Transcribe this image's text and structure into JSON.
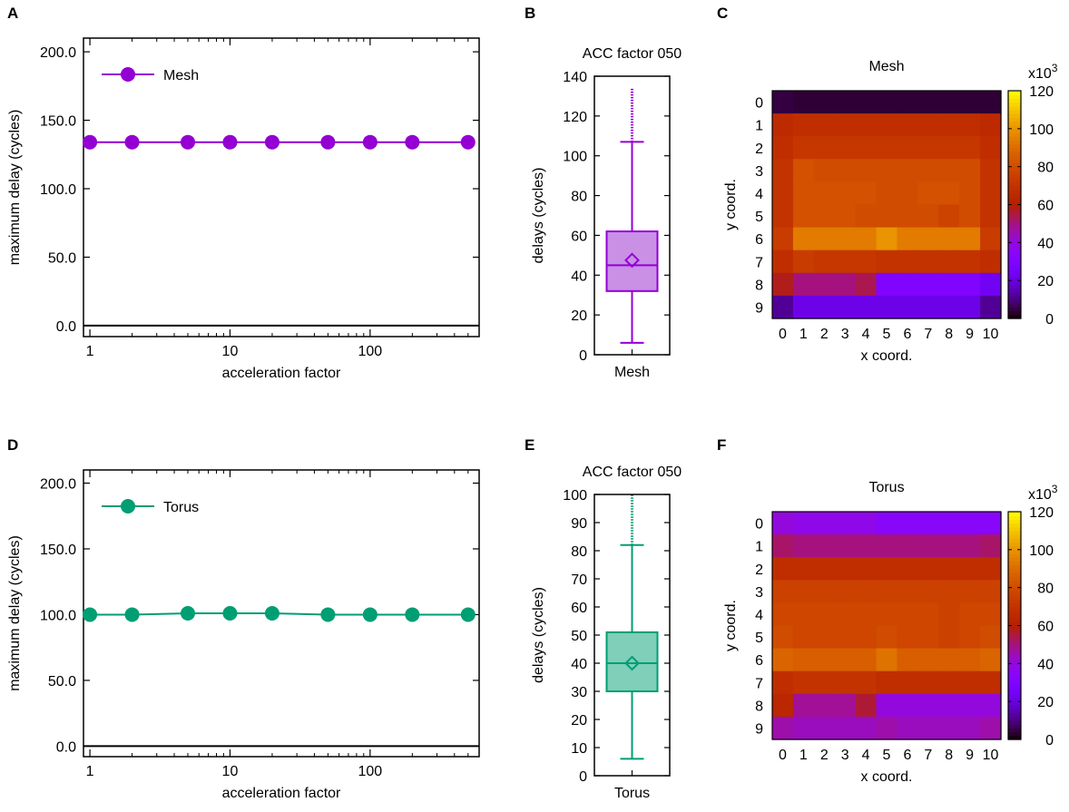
{
  "panel_labels": {
    "A": "A",
    "B": "B",
    "C": "C",
    "D": "D",
    "E": "E",
    "F": "F"
  },
  "chart_data": [
    {
      "id": "A",
      "type": "line",
      "title": "",
      "xlabel": "acceleration factor",
      "ylabel": "maximum delay (cycles)",
      "xscale": "log",
      "xlim": [
        0.9,
        600
      ],
      "ylim": [
        -8,
        210
      ],
      "xticks": [
        1,
        10,
        100
      ],
      "xtick_labels": [
        "1",
        "10",
        "100"
      ],
      "yticks": [
        0,
        50,
        100,
        150,
        200
      ],
      "ytick_labels": [
        "0.0",
        "50.0",
        "100.0",
        "150.0",
        "200.0"
      ],
      "legend_position": "top-left",
      "color": "#9400d3",
      "series": [
        {
          "name": "Mesh",
          "x": [
            1,
            2,
            5,
            10,
            20,
            50,
            100,
            200,
            500
          ],
          "y": [
            134,
            134,
            134,
            134,
            134,
            134,
            134,
            134,
            134
          ]
        }
      ]
    },
    {
      "id": "B",
      "type": "box",
      "title": "ACC factor 050",
      "xlabel": "Mesh",
      "ylabel": "delays (cycles)",
      "ylim": [
        0,
        140
      ],
      "yticks": [
        0,
        20,
        40,
        60,
        80,
        100,
        120,
        140
      ],
      "ytick_labels": [
        "0",
        "20",
        "40",
        "60",
        "80",
        "100",
        "120",
        "140"
      ],
      "color": "#9400d3",
      "fill": "#c990e6",
      "stats": {
        "whisker_low": 6,
        "q1": 32,
        "median": 45,
        "mean": 47.5,
        "q3": 62,
        "whisker_high": 107,
        "outlier_max": 134
      }
    },
    {
      "id": "C",
      "type": "heatmap",
      "title": "Mesh",
      "xlabel": "x coord.",
      "ylabel": "y coord.",
      "x_labels": [
        "0",
        "1",
        "2",
        "3",
        "4",
        "5",
        "6",
        "7",
        "8",
        "9",
        "10"
      ],
      "y_labels": [
        "0",
        "1",
        "2",
        "3",
        "4",
        "5",
        "6",
        "7",
        "8",
        "9"
      ],
      "colorbar_label": "x10",
      "colorbar_exponent": "3",
      "colorbar_ticks": [
        0,
        20,
        40,
        60,
        80,
        100,
        120
      ],
      "colorbar_tick_labels": [
        "0",
        "20",
        "40",
        "60",
        "80",
        "100",
        "120"
      ],
      "colorbar_range": [
        0,
        120
      ],
      "values": [
        [
          5,
          4,
          4,
          4,
          4,
          4,
          4,
          4,
          4,
          4,
          4
        ],
        [
          66,
          68,
          68,
          68,
          68,
          68,
          68,
          68,
          68,
          68,
          66
        ],
        [
          68,
          72,
          72,
          72,
          72,
          72,
          72,
          72,
          72,
          72,
          68
        ],
        [
          70,
          82,
          80,
          80,
          80,
          80,
          80,
          80,
          80,
          80,
          70
        ],
        [
          70,
          82,
          82,
          82,
          82,
          80,
          80,
          82,
          82,
          80,
          70
        ],
        [
          70,
          82,
          82,
          82,
          80,
          80,
          80,
          80,
          77,
          80,
          70
        ],
        [
          74,
          94,
          94,
          94,
          94,
          100,
          94,
          94,
          94,
          94,
          74
        ],
        [
          68,
          74,
          72,
          72,
          72,
          70,
          70,
          70,
          70,
          70,
          68
        ],
        [
          58,
          50,
          50,
          50,
          54,
          30,
          30,
          30,
          30,
          30,
          24
        ],
        [
          12,
          22,
          22,
          22,
          22,
          22,
          22,
          22,
          22,
          22,
          12
        ]
      ]
    },
    {
      "id": "D",
      "type": "line",
      "title": "",
      "xlabel": "acceleration factor",
      "ylabel": "maximum delay (cycles)",
      "xscale": "log",
      "xlim": [
        0.9,
        600
      ],
      "ylim": [
        -8,
        210
      ],
      "xticks": [
        1,
        10,
        100
      ],
      "xtick_labels": [
        "1",
        "10",
        "100"
      ],
      "yticks": [
        0,
        50,
        100,
        150,
        200
      ],
      "ytick_labels": [
        "0.0",
        "50.0",
        "100.0",
        "150.0",
        "200.0"
      ],
      "legend_position": "top-left",
      "color": "#009e73",
      "series": [
        {
          "name": "Torus",
          "x": [
            1,
            2,
            5,
            10,
            20,
            50,
            100,
            200,
            500
          ],
          "y": [
            100,
            100,
            101,
            101,
            101,
            100,
            100,
            100,
            100
          ]
        }
      ]
    },
    {
      "id": "E",
      "type": "box",
      "title": "ACC factor 050",
      "xlabel": "Torus",
      "ylabel": "delays (cycles)",
      "ylim": [
        0,
        100
      ],
      "yticks": [
        0,
        10,
        20,
        30,
        40,
        50,
        60,
        70,
        80,
        90,
        100
      ],
      "ytick_labels": [
        "0",
        "10",
        "20",
        "30",
        "40",
        "50",
        "60",
        "70",
        "80",
        "90",
        "100"
      ],
      "color": "#009e73",
      "fill": "#7fcfb9",
      "stats": {
        "whisker_low": 6,
        "q1": 30,
        "median": 40,
        "mean": 40,
        "q3": 51,
        "whisker_high": 82,
        "outlier_max": 100
      }
    },
    {
      "id": "F",
      "type": "heatmap",
      "title": "Torus",
      "xlabel": "x coord.",
      "ylabel": "y coord.",
      "x_labels": [
        "0",
        "1",
        "2",
        "3",
        "4",
        "5",
        "6",
        "7",
        "8",
        "9",
        "10"
      ],
      "y_labels": [
        "0",
        "1",
        "2",
        "3",
        "4",
        "5",
        "6",
        "7",
        "8",
        "9"
      ],
      "colorbar_label": "x10",
      "colorbar_exponent": "3",
      "colorbar_ticks": [
        0,
        20,
        40,
        60,
        80,
        100,
        120
      ],
      "colorbar_tick_labels": [
        "0",
        "20",
        "40",
        "60",
        "80",
        "100",
        "120"
      ],
      "colorbar_range": [
        0,
        120
      ],
      "values": [
        [
          40,
          38,
          38,
          38,
          38,
          34,
          34,
          34,
          34,
          34,
          34
        ],
        [
          52,
          50,
          50,
          50,
          50,
          50,
          50,
          50,
          50,
          50,
          52
        ],
        [
          68,
          68,
          68,
          68,
          68,
          68,
          68,
          68,
          68,
          68,
          68
        ],
        [
          76,
          76,
          76,
          76,
          76,
          76,
          76,
          76,
          76,
          76,
          76
        ],
        [
          78,
          78,
          78,
          78,
          78,
          78,
          78,
          78,
          76,
          78,
          78
        ],
        [
          80,
          78,
          78,
          78,
          78,
          80,
          78,
          78,
          76,
          78,
          80
        ],
        [
          88,
          86,
          86,
          86,
          86,
          92,
          86,
          86,
          86,
          86,
          88
        ],
        [
          68,
          70,
          70,
          70,
          70,
          68,
          68,
          68,
          68,
          68,
          68
        ],
        [
          64,
          48,
          48,
          48,
          56,
          40,
          40,
          40,
          40,
          40,
          40
        ],
        [
          46,
          44,
          44,
          44,
          44,
          46,
          44,
          44,
          44,
          44,
          46
        ]
      ]
    }
  ]
}
